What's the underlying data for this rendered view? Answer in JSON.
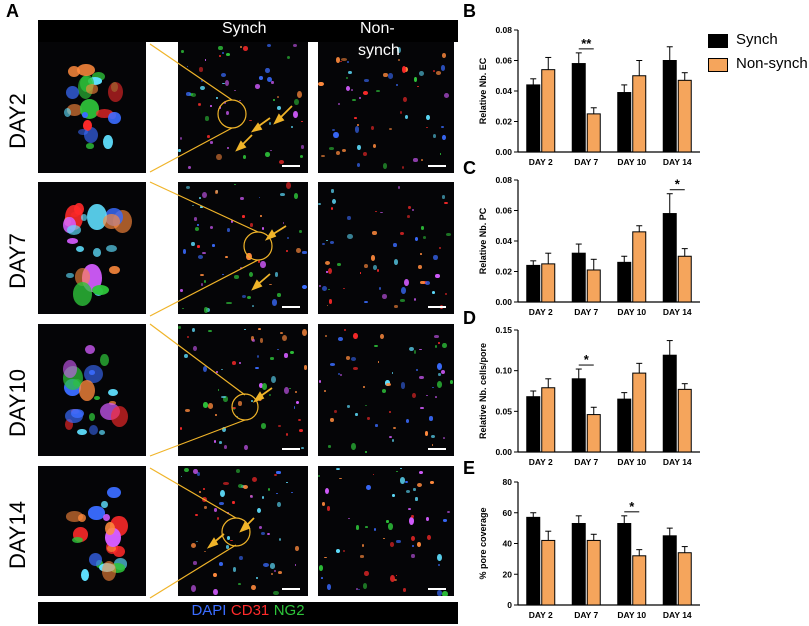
{
  "panels": {
    "A": "A",
    "B": "B",
    "C": "C",
    "D": "D",
    "E": "E"
  },
  "image_panel": {
    "col_synch": "Synch",
    "col_nonsynch_1": "Non-",
    "col_nonsynch_2": "synch",
    "rows": [
      "DAY2",
      "DAY7",
      "DAY10",
      "DAY14"
    ],
    "stain_dapi": "DAPI",
    "stain_cd31": "CD31",
    "stain_ng2": "NG2",
    "stain_colors": {
      "dapi": "#3a6cff",
      "cd31": "#ff2a2a",
      "ng2": "#2ec43a"
    },
    "annotation_color": "#f0b429"
  },
  "legend": {
    "synch": "Synch",
    "nonsynch": "Non-synch",
    "colors": {
      "synch": "#000000",
      "nonsynch": "#f5a55c"
    }
  },
  "chart_data": [
    {
      "panel": "B",
      "type": "bar",
      "categories": [
        "DAY 2",
        "DAY 7",
        "DAY 10",
        "DAY 14"
      ],
      "series": [
        {
          "name": "Synch",
          "values": [
            0.044,
            0.058,
            0.039,
            0.06
          ],
          "err": [
            0.004,
            0.007,
            0.005,
            0.009
          ]
        },
        {
          "name": "Non-synch",
          "values": [
            0.054,
            0.025,
            0.05,
            0.047
          ],
          "err": [
            0.008,
            0.004,
            0.01,
            0.005
          ]
        }
      ],
      "ylabel": "Relative Nb. EC",
      "ylim": [
        0,
        0.08
      ],
      "yticks": [
        "0.00",
        "0.02",
        "0.04",
        "0.06",
        "0.08"
      ],
      "significance": [
        {
          "category": "DAY 7",
          "label": "**"
        }
      ]
    },
    {
      "panel": "C",
      "type": "bar",
      "categories": [
        "DAY 2",
        "DAY 7",
        "DAY 10",
        "DAY 14"
      ],
      "series": [
        {
          "name": "Synch",
          "values": [
            0.024,
            0.032,
            0.026,
            0.058
          ],
          "err": [
            0.003,
            0.006,
            0.004,
            0.013
          ]
        },
        {
          "name": "Non-synch",
          "values": [
            0.025,
            0.021,
            0.046,
            0.03
          ],
          "err": [
            0.007,
            0.007,
            0.004,
            0.005
          ]
        }
      ],
      "ylabel": "Relative Nb. PC",
      "ylim": [
        0,
        0.08
      ],
      "yticks": [
        "0.00",
        "0.02",
        "0.04",
        "0.06",
        "0.08"
      ],
      "significance": [
        {
          "category": "DAY 14",
          "label": "*"
        }
      ]
    },
    {
      "panel": "D",
      "type": "bar",
      "categories": [
        "DAY 2",
        "DAY 7",
        "DAY 10",
        "DAY 14"
      ],
      "series": [
        {
          "name": "Synch",
          "values": [
            0.068,
            0.09,
            0.065,
            0.119
          ],
          "err": [
            0.007,
            0.012,
            0.008,
            0.018
          ]
        },
        {
          "name": "Non-synch",
          "values": [
            0.079,
            0.046,
            0.097,
            0.077
          ],
          "err": [
            0.011,
            0.009,
            0.012,
            0.007
          ]
        }
      ],
      "ylabel": "Relative Nb. cells/pore",
      "ylim": [
        0,
        0.15
      ],
      "yticks": [
        "0.00",
        "0.05",
        "0.10",
        "0.15"
      ],
      "significance": [
        {
          "category": "DAY 7",
          "label": "*"
        }
      ]
    },
    {
      "panel": "E",
      "type": "bar",
      "categories": [
        "DAY 2",
        "DAY 7",
        "DAY 10",
        "DAY 14"
      ],
      "series": [
        {
          "name": "Synch",
          "values": [
            57,
            53,
            53,
            45
          ],
          "err": [
            3,
            5,
            5,
            5
          ]
        },
        {
          "name": "Non-synch",
          "values": [
            42,
            42,
            32,
            34
          ],
          "err": [
            6,
            4,
            4,
            4
          ]
        }
      ],
      "ylabel": "% pore coverage",
      "ylim": [
        0,
        80
      ],
      "yticks": [
        "0",
        "20",
        "40",
        "60",
        "80"
      ],
      "significance": [
        {
          "category": "DAY 10",
          "label": "*"
        }
      ]
    }
  ]
}
